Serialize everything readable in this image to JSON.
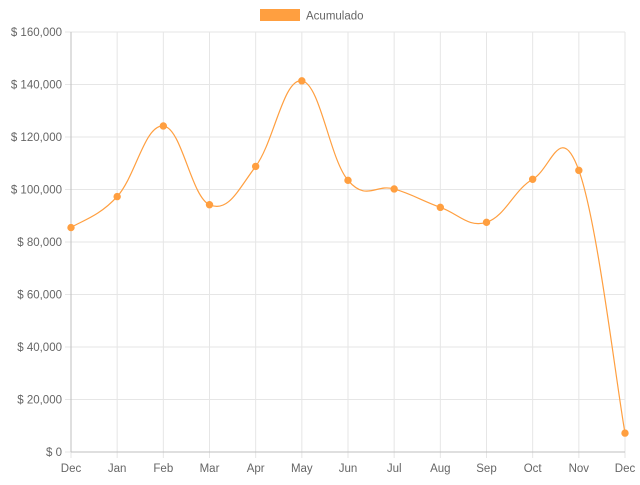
{
  "chart_data": {
    "type": "line",
    "categories": [
      "Dec",
      "Jan",
      "Feb",
      "Mar",
      "Apr",
      "May",
      "Jun",
      "Jul",
      "Aug",
      "Sep",
      "Oct",
      "Nov",
      "Dec"
    ],
    "series": [
      {
        "name": "Acumulado",
        "values": [
          85500,
          97300,
          124200,
          94200,
          108800,
          141400,
          103500,
          100200,
          93200,
          87500,
          103900,
          107300,
          7200
        ]
      }
    ],
    "y_ticks": [
      "$ 0",
      "$ 20,000",
      "$ 40,000",
      "$ 60,000",
      "$ 80,000",
      "$ 100,000",
      "$ 120,000",
      "$ 140,000",
      "$ 160,000"
    ],
    "ylim": [
      0,
      160000
    ],
    "grid": true,
    "legend_position": "top-center",
    "colors": {
      "series": "#ff9f40",
      "grid": "#e6e6e6",
      "axis": "#bfbfbf",
      "text": "#666666"
    }
  }
}
